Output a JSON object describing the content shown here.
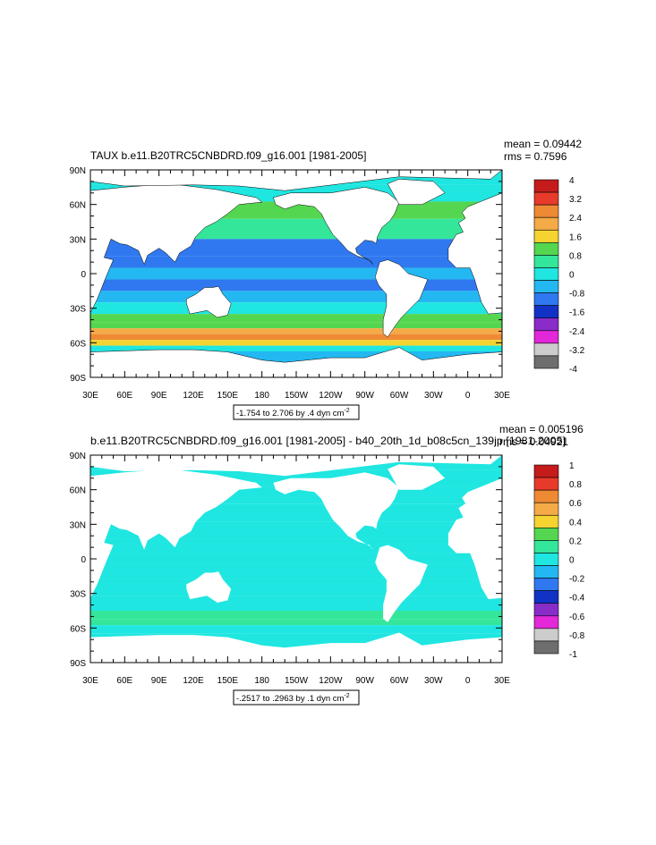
{
  "chart_data": [
    {
      "type": "heatmap",
      "title": "TAUX b.e11.B20TRC5CNBDRD.f09_g16.001 [1981-2005]",
      "stats": [
        "mean = 0.09442",
        "rms = 0.7596"
      ],
      "info": "-1.754 to 2.706 by .4 dyn cm",
      "info_sup": "-2",
      "x_ticks": [
        "30E",
        "60E",
        "90E",
        "120E",
        "150E",
        "180",
        "150W",
        "120W",
        "90W",
        "60W",
        "30W",
        "0",
        "30E"
      ],
      "y_ticks": [
        "90N",
        "60N",
        "30N",
        "0",
        "30S",
        "60S",
        "90S"
      ],
      "legend_labels": [
        "4",
        "3.2",
        "2.4",
        "1.6",
        "0.8",
        "0",
        "-0.8",
        "-1.6",
        "-2.4",
        "-3.2",
        "-4"
      ],
      "legend_colors": [
        "#c51b1b",
        "#e83a2a",
        "#ee8a34",
        "#f4aa47",
        "#f6d331",
        "#55d650",
        "#34e69a",
        "#1fe6e0",
        "#23b8f2",
        "#2f78f0",
        "#1232c6",
        "#8a2cc8",
        "#e228d8",
        "#cccccc",
        "#6e6e6e"
      ],
      "bands": [
        {
          "lat": 85,
          "v": -0.2
        },
        {
          "lat": 70,
          "v": 0.1
        },
        {
          "lat": 55,
          "v": 0.9
        },
        {
          "lat": 40,
          "v": 0.3
        },
        {
          "lat": 20,
          "v": -1.0
        },
        {
          "lat": 10,
          "v": -0.9
        },
        {
          "lat": 0,
          "v": -0.5
        },
        {
          "lat": -10,
          "v": -0.9
        },
        {
          "lat": -20,
          "v": -0.6
        },
        {
          "lat": -30,
          "v": 0.2
        },
        {
          "lat": -40,
          "v": 0.9
        },
        {
          "lat": -45,
          "v": 1.4
        },
        {
          "lat": -50,
          "v": 2.2
        },
        {
          "lat": -55,
          "v": 2.6
        },
        {
          "lat": -60,
          "v": 1.7
        },
        {
          "lat": -65,
          "v": 0.2
        },
        {
          "lat": -70,
          "v": -0.3
        }
      ]
    },
    {
      "type": "heatmap",
      "title": "b.e11.B20TRC5CNBDRD.f09_g16.001 [1981-2005] - b40_20th_1d_b08c5cn_139jp [1981-2005]",
      "stats": [
        "mean = 0.005196",
        "rms = 0.04921"
      ],
      "info": "-.2517 to .2963 by .1 dyn cm",
      "info_sup": "-2",
      "x_ticks": [
        "30E",
        "60E",
        "90E",
        "120E",
        "150E",
        "180",
        "150W",
        "120W",
        "90W",
        "60W",
        "30W",
        "0",
        "30E"
      ],
      "y_ticks": [
        "90N",
        "60N",
        "30N",
        "0",
        "30S",
        "60S",
        "90S"
      ],
      "legend_labels": [
        "1",
        "0.8",
        "0.6",
        "0.4",
        "0.2",
        "0",
        "-0.2",
        "-0.4",
        "-0.6",
        "-0.8",
        "-1"
      ],
      "legend_colors": [
        "#c51b1b",
        "#e83a2a",
        "#ee8a34",
        "#f4aa47",
        "#f6d331",
        "#55d650",
        "#34e69a",
        "#1fe6e0",
        "#23b8f2",
        "#2f78f0",
        "#1232c6",
        "#8a2cc8",
        "#e228d8",
        "#cccccc",
        "#6e6e6e"
      ],
      "bands": [
        {
          "lat": 85,
          "v": 0.05
        },
        {
          "lat": 70,
          "v": 0.05
        },
        {
          "lat": 55,
          "v": -0.05
        },
        {
          "lat": 40,
          "v": -0.05
        },
        {
          "lat": 25,
          "v": 0.05
        },
        {
          "lat": 10,
          "v": -0.05
        },
        {
          "lat": 0,
          "v": -0.05
        },
        {
          "lat": -10,
          "v": -0.05
        },
        {
          "lat": -25,
          "v": -0.05
        },
        {
          "lat": -40,
          "v": 0.05
        },
        {
          "lat": -50,
          "v": 0.1
        },
        {
          "lat": -55,
          "v": 0.15
        },
        {
          "lat": -60,
          "v": 0.05
        },
        {
          "lat": -70,
          "v": 0.05
        }
      ]
    }
  ]
}
